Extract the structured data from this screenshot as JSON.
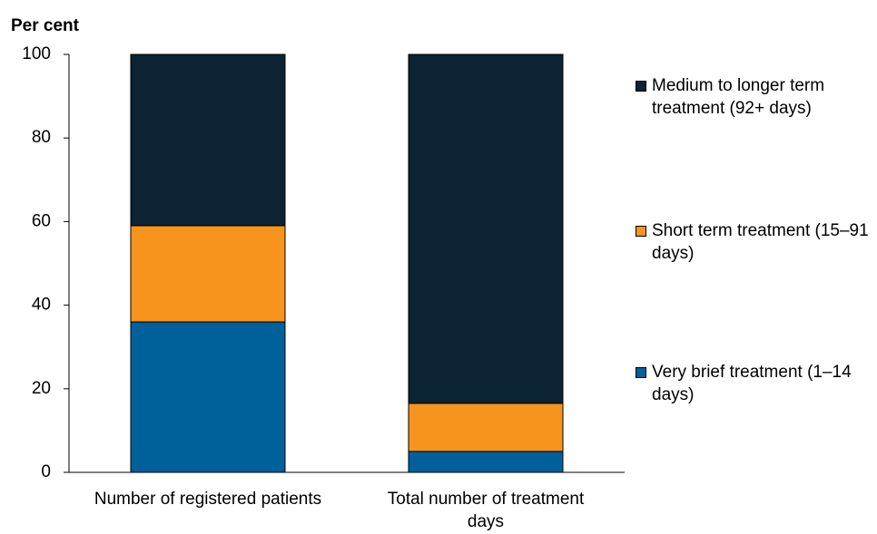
{
  "chart_data": {
    "type": "stacked-bar",
    "y_label": "Per cent",
    "categories": [
      "Number of registered patients",
      "Total number of treatment days"
    ],
    "series": [
      {
        "name": "Very brief treatment (1–14 days)",
        "color": "#00609c",
        "values": [
          36,
          5
        ]
      },
      {
        "name": "Short term treatment (15–91 days)",
        "color": "#f7941d",
        "values": [
          23,
          11.5
        ]
      },
      {
        "name": "Medium to longer term treatment (92+ days)",
        "color": "#0b2332",
        "values": [
          41,
          83.5
        ]
      }
    ],
    "ylim": [
      0,
      100
    ],
    "yticks": [
      0,
      20,
      40,
      60,
      80,
      100
    ],
    "grid": false
  }
}
